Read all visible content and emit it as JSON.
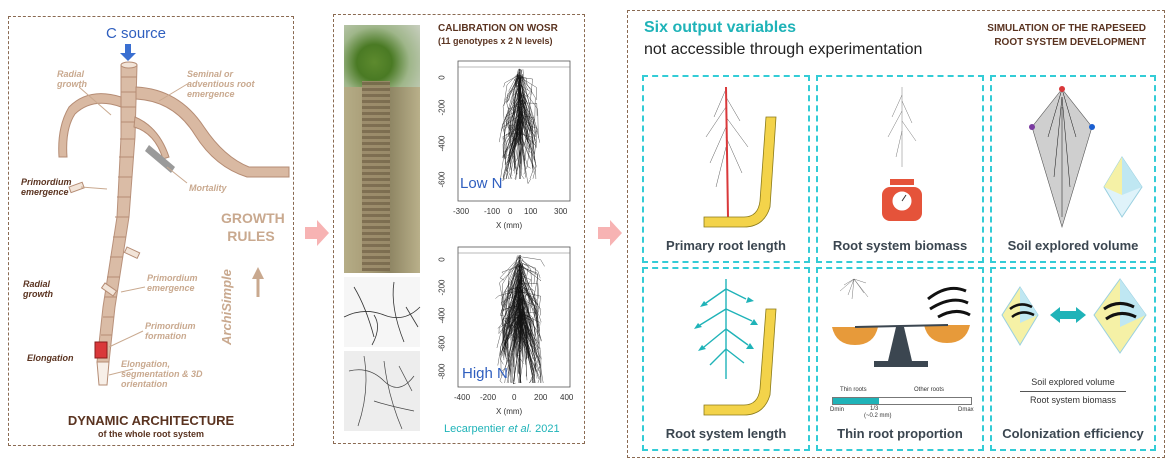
{
  "left": {
    "c_source": "C source",
    "labels": {
      "radial_growth_top": "Radial growth",
      "seminal": "Seminal or adventious root emergence",
      "primordium_emergence_left": "Primordium emergence",
      "mortality": "Mortality",
      "radial_growth_left": "Radial growth",
      "primordium_emergence_right": "Primordium emergence",
      "primordium_formation": "Primordium formation",
      "elongation": "Elongation",
      "elongation_seg": "Elongation, segmentation & 3D orientation"
    },
    "growth_rules": "GROWTH RULES",
    "archisimple": "ArchiSimple",
    "title": "DYNAMIC ARCHITECTURE",
    "subtitle": "of the whole root system"
  },
  "middle": {
    "title": "CALIBRATION ON WOSR",
    "subtitle": "(11 genotypes x 2 N levels)",
    "plot_low": {
      "label": "Low N",
      "x_ticks": [
        "-300",
        "-100",
        "0",
        "100",
        "300"
      ],
      "y_ticks": [
        "0",
        "-200",
        "-400",
        "-600"
      ],
      "xlabel": "X (mm)"
    },
    "plot_high": {
      "label": "High N",
      "x_ticks": [
        "-400",
        "-200",
        "0",
        "200",
        "400"
      ],
      "y_ticks": [
        "0",
        "-200",
        "-400",
        "-600",
        "-800"
      ],
      "xlabel": "X (mm)"
    },
    "citation_prefix": "Lecarpentier ",
    "citation_italic": "et al.",
    "citation_suffix": " 2021"
  },
  "right": {
    "heading": "Six output variables",
    "subheading": "not accessible through experimentation",
    "sim_title_1": "SIMULATION OF THE RAPESEED",
    "sim_title_2": "ROOT SYSTEM DEVELOPMENT",
    "cells": [
      "Primary root length",
      "Root system biomass",
      "Soil explored volume",
      "Root system length",
      "Thin root proportion",
      "Colonization efficiency"
    ],
    "thin_bar": {
      "thin_label": "Thin roots",
      "other_label": "Other roots",
      "dmin": "Dmin",
      "dmax": "Dmax",
      "third": "1/3",
      "approx": "(~0.2 mm)",
      "thin_fraction": 0.33
    },
    "ratio_numerator": "Soil explored volume",
    "ratio_denominator": "Root system biomass"
  },
  "colors": {
    "accent_teal": "#1fb3b8",
    "dashed_cyan": "#33ccd6",
    "brown": "#5a3320",
    "arrow_pink": "#f7b3b3",
    "blue": "#2f5fbf"
  }
}
